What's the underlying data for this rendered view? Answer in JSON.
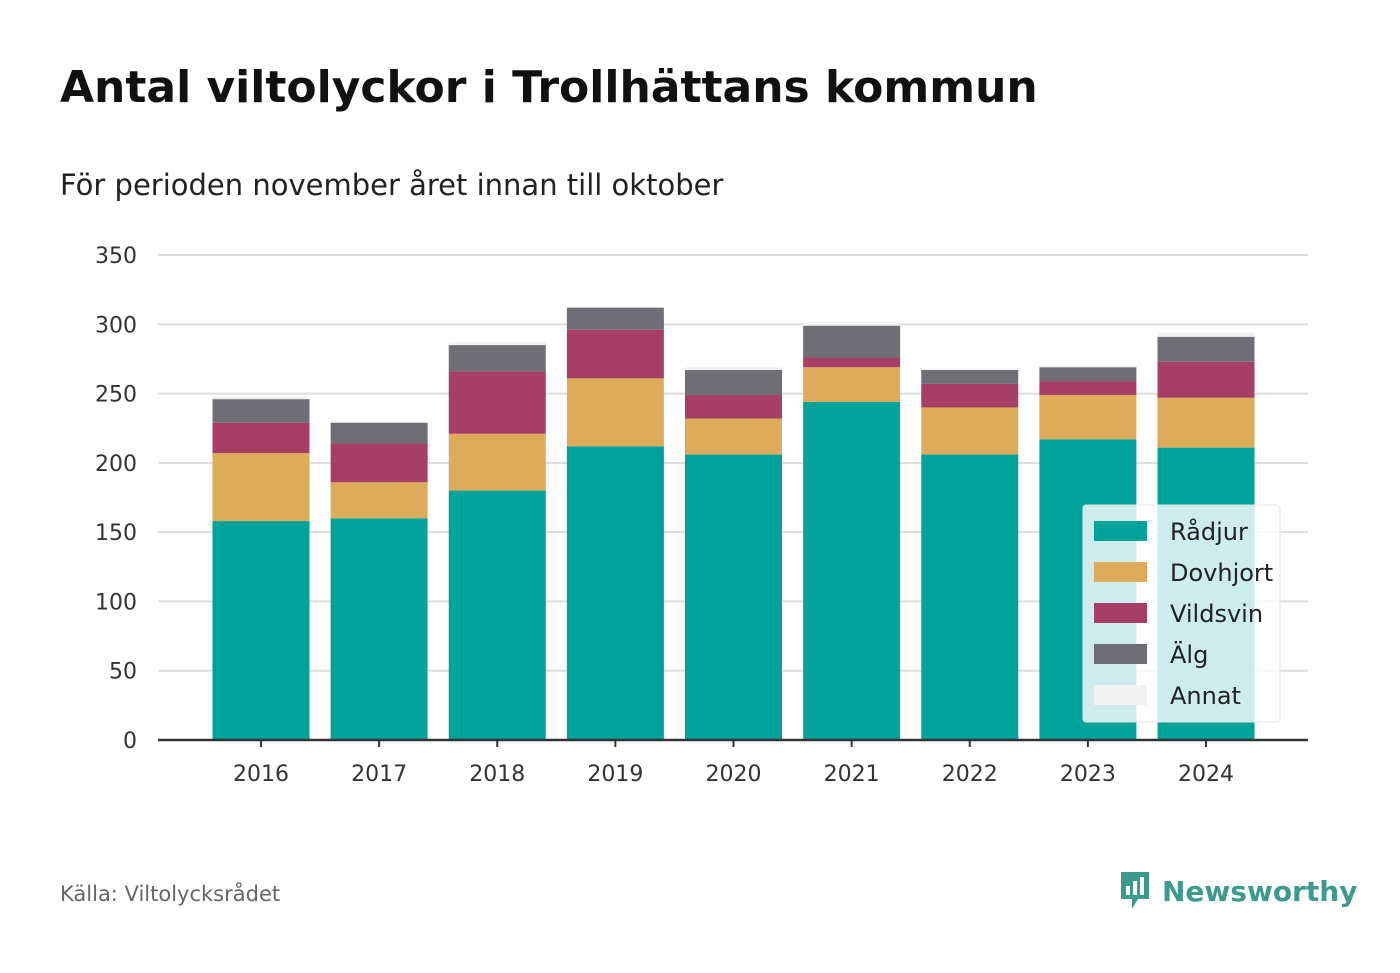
{
  "title": "Antal viltolyckor i Trollhättans kommun",
  "subtitle": "För perioden november året innan till oktober",
  "source": "Källa: Viltolycksrådet",
  "logo": "Newsworthy",
  "colors": {
    "Rådjur": "#00a39a",
    "Dovhjort": "#dcac5a",
    "Vildsvin": "#a63e66",
    "Älg": "#6f6e74",
    "Annat": "#f2f2f2",
    "brand": "#3d9a8f"
  },
  "chart_data": {
    "type": "bar",
    "stacked": true,
    "categories": [
      "2016",
      "2017",
      "2018",
      "2019",
      "2020",
      "2021",
      "2022",
      "2023",
      "2024"
    ],
    "series": [
      {
        "name": "Rådjur",
        "values": [
          158,
          160,
          180,
          212,
          206,
          244,
          206,
          217,
          211
        ]
      },
      {
        "name": "Dovhjort",
        "values": [
          49,
          26,
          41,
          49,
          26,
          25,
          34,
          32,
          36
        ]
      },
      {
        "name": "Vildsvin",
        "values": [
          22,
          28,
          45,
          35,
          17,
          7,
          17,
          10,
          26
        ]
      },
      {
        "name": "Älg",
        "values": [
          17,
          15,
          19,
          16,
          18,
          23,
          10,
          10,
          18
        ]
      },
      {
        "name": "Annat",
        "values": [
          2,
          1,
          2,
          0,
          2,
          3,
          1,
          1,
          3
        ]
      }
    ],
    "ylim": [
      0,
      350
    ],
    "yticks": [
      "0",
      "50",
      "100",
      "150",
      "200",
      "250",
      "300",
      "350"
    ],
    "grid": true,
    "legend_position": "bottom-right"
  }
}
